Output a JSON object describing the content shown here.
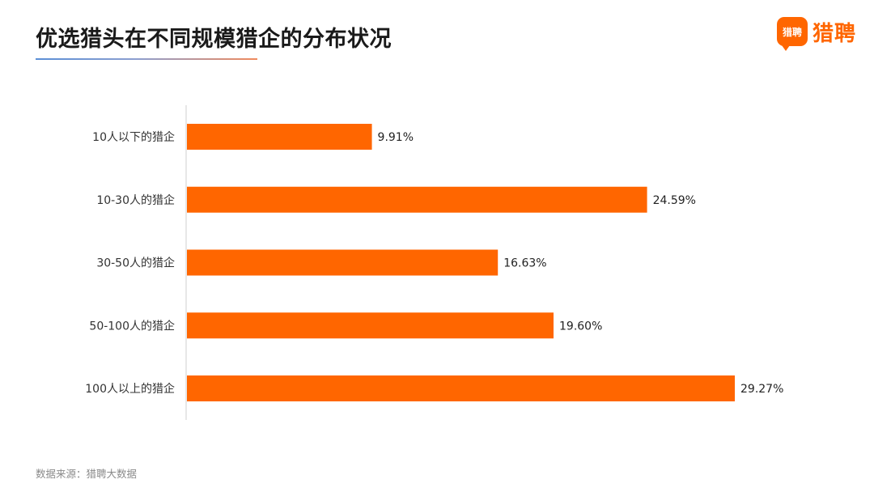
{
  "title": "优选猎头在不同规模猎企的分布状况",
  "logo": {
    "mark_text": "猎聘",
    "text": "猎聘"
  },
  "footer": "数据来源：猎聘大数据",
  "colors": {
    "bar": "#ff6600",
    "axis": "#cfcfcf",
    "brand": "#ff6600"
  },
  "chart_data": {
    "type": "bar",
    "orientation": "horizontal",
    "categories": [
      "10人以下的猎企",
      "10-30人的猎企",
      "30-50人的猎企",
      "50-100人的猎企",
      "100人以上的猎企"
    ],
    "values": [
      9.91,
      24.59,
      16.63,
      19.6,
      29.27
    ],
    "value_labels": [
      "9.91%",
      "24.59%",
      "16.63%",
      "19.60%",
      "29.27%"
    ],
    "unit": "%",
    "xlim": [
      0,
      30
    ],
    "grid": false,
    "legend": "none"
  }
}
